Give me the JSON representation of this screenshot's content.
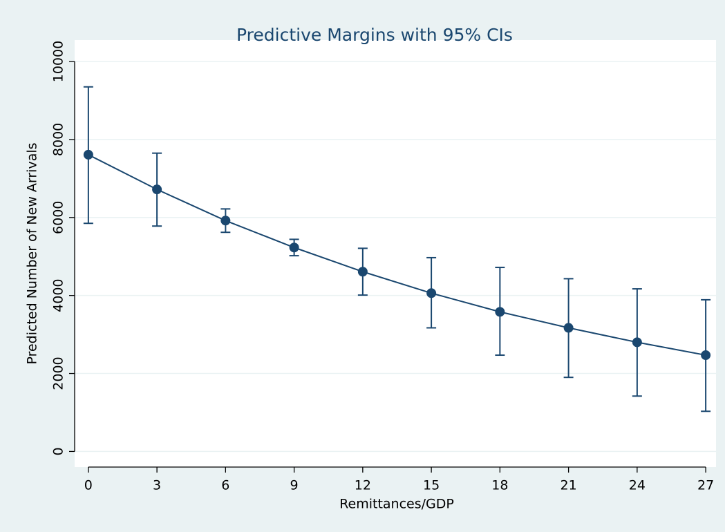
{
  "chart_data": {
    "type": "line",
    "title": "Predictive Margins with 95% CIs",
    "xlabel": "Remittances/GDP",
    "ylabel": "Predicted Number of New Arrivals",
    "x": [
      0,
      3,
      6,
      9,
      12,
      15,
      18,
      21,
      24,
      27
    ],
    "series": [
      {
        "color": "#1a476f",
        "values": [
          7610,
          6720,
          5920,
          5230,
          4610,
          4060,
          3580,
          3170,
          2800,
          2470
        ],
        "lower": [
          5850,
          5780,
          5620,
          5020,
          4010,
          3170,
          2470,
          1900,
          1420,
          1030
        ],
        "upper": [
          9350,
          7650,
          6220,
          5440,
          5210,
          4970,
          4720,
          4430,
          4170,
          3890
        ]
      }
    ],
    "xlim": [
      -0.6,
      27.45
    ],
    "xticks": [
      0,
      3,
      6,
      9,
      12,
      15,
      18,
      21,
      24,
      27
    ],
    "ylim": [
      -400,
      10550
    ],
    "yticks": [
      0,
      2000,
      4000,
      6000,
      8000,
      10000
    ],
    "grid": true
  }
}
